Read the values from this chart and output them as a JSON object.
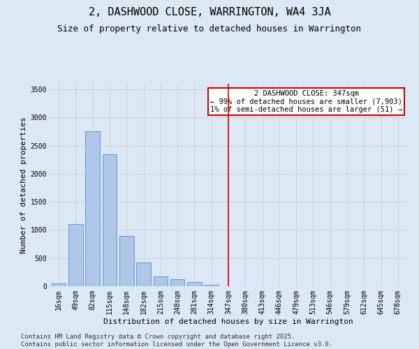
{
  "title": "2, DASHWOOD CLOSE, WARRINGTON, WA4 3JA",
  "subtitle": "Size of property relative to detached houses in Warrington",
  "xlabel": "Distribution of detached houses by size in Warrington",
  "ylabel": "Number of detached properties",
  "categories": [
    "16sqm",
    "49sqm",
    "82sqm",
    "115sqm",
    "148sqm",
    "182sqm",
    "215sqm",
    "248sqm",
    "281sqm",
    "314sqm",
    "347sqm",
    "380sqm",
    "413sqm",
    "446sqm",
    "479sqm",
    "513sqm",
    "546sqm",
    "579sqm",
    "612sqm",
    "645sqm",
    "678sqm"
  ],
  "values": [
    50,
    1100,
    2750,
    2350,
    900,
    420,
    175,
    120,
    80,
    30,
    5,
    2,
    1,
    0,
    0,
    0,
    0,
    0,
    0,
    0,
    0
  ],
  "bar_color": "#aec6e8",
  "bar_edgecolor": "#5b9bd5",
  "vline_x_index": 10,
  "vline_color": "#cc0000",
  "annotation_title": "2 DASHWOOD CLOSE: 347sqm",
  "annotation_line1": "← 99% of detached houses are smaller (7,903)",
  "annotation_line2": "1% of semi-detached houses are larger (51) →",
  "annotation_box_color": "#cc0000",
  "annotation_bg": "#ffffff",
  "ylim": [
    0,
    3600
  ],
  "yticks": [
    0,
    500,
    1000,
    1500,
    2000,
    2500,
    3000,
    3500
  ],
  "grid_color": "#cccccc",
  "bg_color": "#dce8f5",
  "footer1": "Contains HM Land Registry data © Crown copyright and database right 2025.",
  "footer2": "Contains public sector information licensed under the Open Government Licence v3.0.",
  "title_fontsize": 11,
  "subtitle_fontsize": 9,
  "label_fontsize": 8,
  "tick_fontsize": 7,
  "annotation_fontsize": 7.5,
  "footer_fontsize": 6.5
}
